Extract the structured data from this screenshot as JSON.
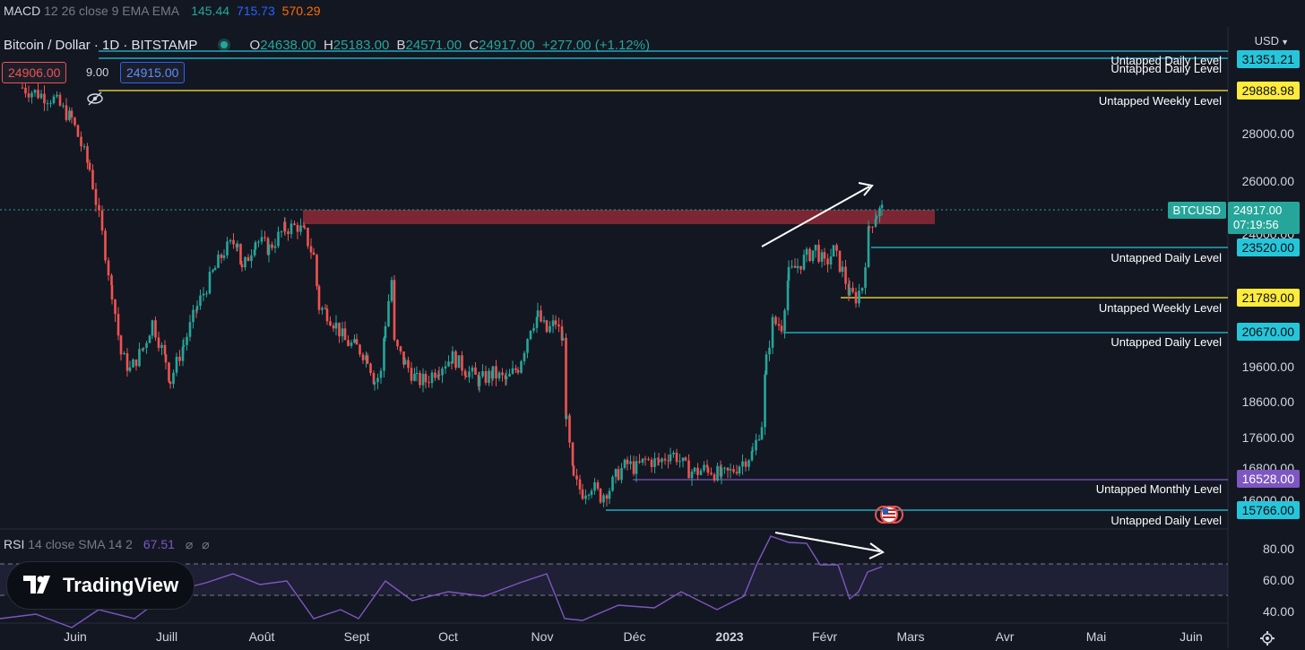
{
  "macd": {
    "name": "MACD",
    "params": "12 26 close 9 EMA EMA",
    "v1": "145.44",
    "v2": "715.73",
    "v3": "570.29"
  },
  "symbol": {
    "title": "Bitcoin / Dollar · 1D · BITSTAMP",
    "o_label": "O",
    "o": "24638.00",
    "h_label": "H",
    "h": "25183.00",
    "b_label": "B",
    "b": "24571.00",
    "c_label": "C",
    "c": "24917.00",
    "change": "+277.00 (+1.12%)"
  },
  "order": {
    "sell": "24906.00",
    "spread": "9.00",
    "buy": "24915.00"
  },
  "currency": "USD",
  "price_axis": [
    "28000.00",
    "26000.00",
    "24000.00",
    "19600.00",
    "18600.00",
    "17600.00",
    "16800.00",
    "16000.00"
  ],
  "levels": [
    {
      "label": "Untapped Daily Level",
      "price": "31351.21",
      "color": "#26c6da"
    },
    {
      "label": "Untapped Daily Level",
      "price": "31351.21",
      "color": "#26c6da"
    },
    {
      "label": "Untapped Weekly Level",
      "price": "29888.98",
      "color": "#ffeb3b"
    },
    {
      "label": "Untapped Daily Level",
      "price": "23520.00",
      "color": "#26c6da"
    },
    {
      "label": "Untapped Weekly Level",
      "price": "21789.00",
      "color": "#ffeb3b"
    },
    {
      "label": "Untapped Daily Level",
      "price": "20670.00",
      "color": "#26c6da"
    },
    {
      "label": "Untapped Monthly Level",
      "price": "16528.00",
      "color": "#7e57c2"
    },
    {
      "label": "Untapped Daily Level",
      "price": "15766.00",
      "color": "#26c6da"
    }
  ],
  "last_price": {
    "symbol": "BTCUSD",
    "price": "24917.00",
    "countdown": "07:19:56"
  },
  "rsi": {
    "name": "RSI",
    "params": "14 close SMA 14 2",
    "value": "67.51",
    "axis": [
      "80.00",
      "60.00",
      "40.00"
    ]
  },
  "time_axis": [
    "Juin",
    "Juill",
    "Août",
    "Sept",
    "Oct",
    "Nov",
    "Déc",
    "2023",
    "Févr",
    "Mars",
    "Avr",
    "Mai",
    "Juin"
  ],
  "brand": "TradingView",
  "colors": {
    "up": "#26a69a",
    "down": "#ef5350",
    "background": "#131722",
    "rsi": "#7e57c2",
    "zone": "#8e2a36"
  }
}
